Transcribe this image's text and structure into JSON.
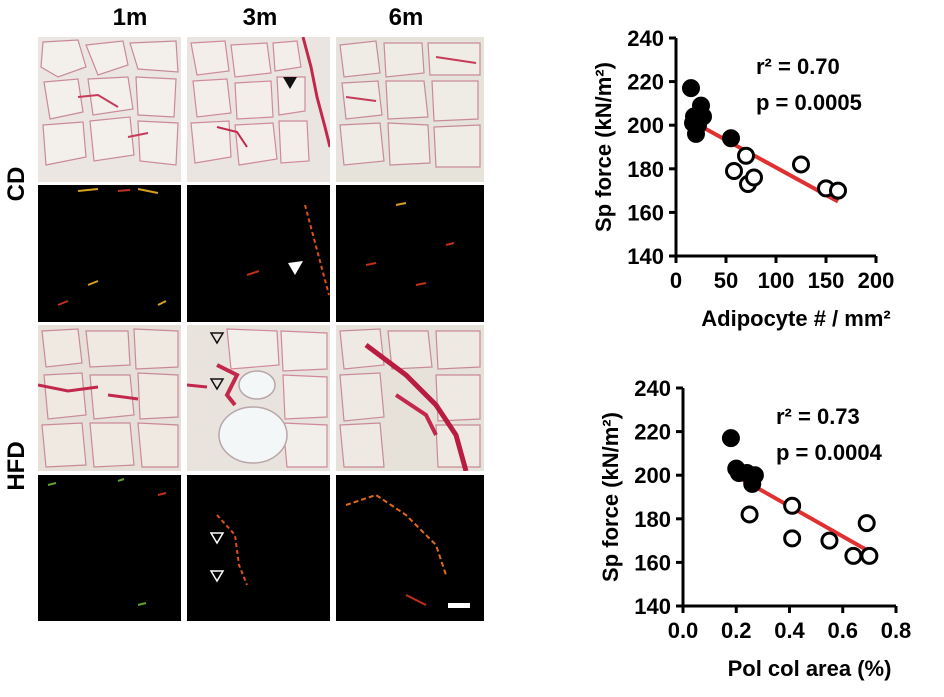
{
  "micrographs": {
    "columns": [
      "1m",
      "3m",
      "6m"
    ],
    "rows": [
      "CD",
      "HFD"
    ],
    "tile_rows": [
      "brightfield",
      "polarized",
      "brightfield",
      "polarized"
    ]
  },
  "chart_data": [
    {
      "type": "scatter",
      "ylabel": "Sp force (kN/m²)",
      "xlabel": "Adipocyte # / mm²",
      "xlim": [
        0,
        200
      ],
      "ylim": [
        140,
        240
      ],
      "xticks": [
        "0",
        "50",
        "100",
        "150",
        "200"
      ],
      "yticks": [
        "140",
        "160",
        "180",
        "200",
        "220",
        "240"
      ],
      "annotation_r2": "r² = 0.70",
      "annotation_p": "p = 0.0005",
      "series": [
        {
          "style": "filled",
          "x": [
            15,
            17,
            18,
            20,
            22,
            25,
            27,
            55
          ],
          "y": [
            217,
            201,
            204,
            196,
            200,
            209,
            204,
            194
          ]
        },
        {
          "style": "open",
          "x": [
            58,
            70,
            72,
            78,
            125,
            150,
            162
          ],
          "y": [
            179,
            186,
            173,
            176,
            182,
            171,
            170
          ]
        }
      ],
      "fit_line": {
        "x": [
          15,
          162
        ],
        "y": [
          202,
          165
        ]
      }
    },
    {
      "type": "scatter",
      "ylabel": "Sp force (kN/m²)",
      "xlabel": "Pol col area (%)",
      "xlim": [
        0,
        0.8
      ],
      "ylim": [
        140,
        240
      ],
      "xticks": [
        "0.0",
        "0.2",
        "0.4",
        "0.6",
        "0.8"
      ],
      "yticks": [
        "140",
        "160",
        "180",
        "200",
        "220",
        "240"
      ],
      "annotation_r2": "r² = 0.73",
      "annotation_p": "p = 0.0004",
      "series": [
        {
          "style": "filled",
          "x": [
            0.18,
            0.2,
            0.21,
            0.24,
            0.26,
            0.27
          ],
          "y": [
            217,
            203,
            201,
            201,
            196,
            200
          ]
        },
        {
          "style": "open",
          "x": [
            0.25,
            0.41,
            0.41,
            0.55,
            0.64,
            0.69,
            0.7
          ],
          "y": [
            182,
            186,
            171,
            170,
            163,
            178,
            163
          ]
        }
      ],
      "fit_line": {
        "x": [
          0.18,
          0.7
        ],
        "y": [
          201,
          165
        ]
      }
    }
  ]
}
